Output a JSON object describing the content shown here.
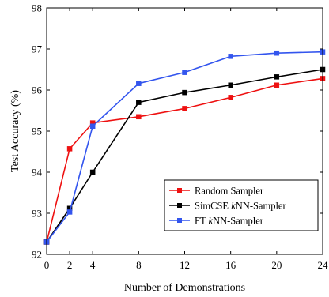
{
  "chart_data": {
    "type": "line",
    "title": "",
    "xlabel": "Number of Demonstrations",
    "ylabel": "Test Accuracy (%)",
    "x": [
      0,
      2,
      4,
      8,
      12,
      16,
      20,
      24
    ],
    "x_tick_labels": [
      "0",
      "2",
      "4",
      "8",
      "12",
      "16",
      "20",
      "24"
    ],
    "xlim": [
      0,
      24
    ],
    "ylim": [
      92,
      98
    ],
    "y_ticks": [
      92,
      93,
      94,
      95,
      96,
      97,
      98
    ],
    "y_tick_labels": [
      "92",
      "93",
      "94",
      "95",
      "96",
      "97",
      "98"
    ],
    "grid": false,
    "legend": {
      "placement": "bottom-right",
      "entries": [
        {
          "prefix": "Random Sampler",
          "italic": "",
          "suffix": ""
        },
        {
          "prefix": "SimCSE ",
          "italic": "k",
          "suffix": "NN-Sampler"
        },
        {
          "prefix": "FT ",
          "italic": "k",
          "suffix": "NN-Sampler"
        }
      ]
    },
    "series": [
      {
        "name": "Random Sampler",
        "color": "#ee1111",
        "marker": "square",
        "values": [
          92.3,
          94.57,
          95.2,
          95.35,
          95.55,
          95.82,
          96.12,
          96.28
        ]
      },
      {
        "name": "SimCSE kNN-Sampler",
        "color": "#000000",
        "marker": "square",
        "values": [
          92.3,
          93.12,
          94.0,
          95.7,
          95.94,
          96.12,
          96.32,
          96.5
        ]
      },
      {
        "name": "FT kNN-Sampler",
        "color": "#3355ee",
        "marker": "square",
        "values": [
          92.3,
          93.03,
          95.12,
          96.16,
          96.43,
          96.82,
          96.9,
          96.93
        ]
      }
    ]
  }
}
